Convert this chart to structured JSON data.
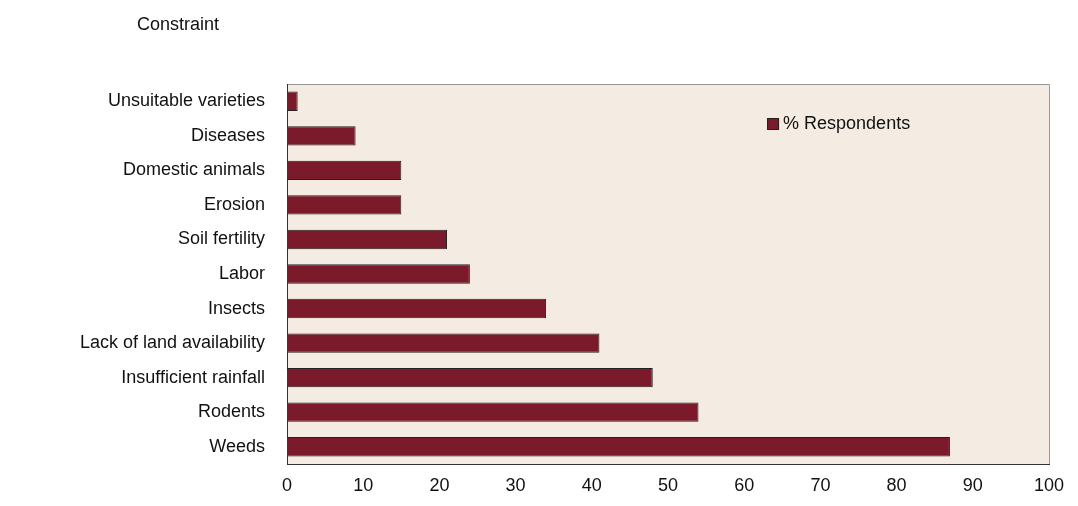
{
  "chart_data": {
    "type": "bar",
    "orientation": "horizontal",
    "ylabel": "Constraint",
    "categories": [
      "Unsuitable varieties",
      "Diseases",
      "Domestic animals",
      "Erosion",
      "Soil fertility",
      "Labor",
      "Insects",
      "Lack of land availability",
      "Insufficient rainfall",
      "Rodents",
      "Weeds"
    ],
    "series": [
      {
        "name": "% Respondents",
        "color": "#7b1a2a",
        "values": [
          1.4,
          9,
          15,
          15,
          21,
          24,
          34,
          41,
          48,
          54,
          87
        ]
      }
    ],
    "xlim": [
      0,
      100
    ],
    "xticks": [
      0,
      10,
      20,
      30,
      40,
      50,
      60,
      70,
      80,
      90,
      100
    ],
    "grid": false,
    "legend": "top right"
  }
}
